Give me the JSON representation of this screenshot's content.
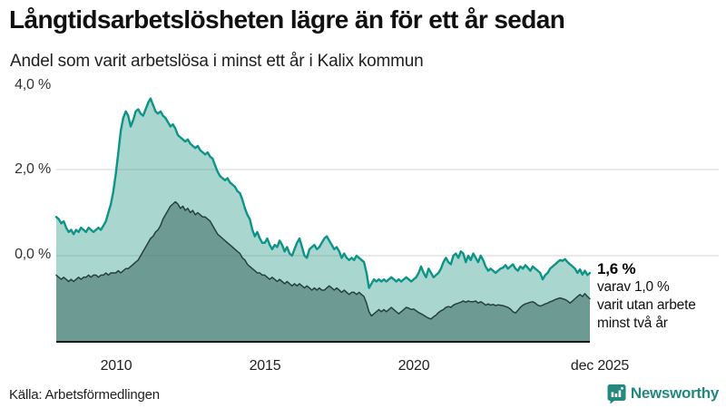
{
  "header": {
    "title": "Långtidsarbetslösheten lägre än för ett år sedan",
    "subtitle": "Andel som varit arbetslösa i minst ett år i Kalix kommun"
  },
  "chart_data": {
    "type": "area",
    "title": "Långtidsarbetslösheten lägre än för ett år sedan",
    "subtitle": "Andel som varit arbetslösa i minst ett år i Kalix kommun",
    "unit": "%",
    "frequency": "monthly",
    "x_start": "2008-01",
    "x_end": "2025-12",
    "xlim": [
      2008.0,
      2026.0
    ],
    "ylim": [
      0,
      5.8
    ],
    "grid": "horizontal",
    "y_grid_values": [
      2,
      4
    ],
    "y_ticks": [
      {
        "value": 0,
        "label": "0,0 %"
      },
      {
        "value": 2,
        "label": "2,0 %"
      },
      {
        "value": 4,
        "label": "4,0 %"
      }
    ],
    "x_ticks": [
      {
        "year": 2010,
        "label": "2010"
      },
      {
        "year": 2015,
        "label": "2015"
      },
      {
        "year": 2020,
        "label": "2020"
      },
      {
        "year": 2025.92,
        "label": "dec 2025"
      }
    ],
    "series": [
      {
        "name": "Arbetslösa minst ett år",
        "line_color": "#0d9488",
        "fill_color": "#a9d6cf",
        "line_width": 2.4,
        "last_value": 1.6,
        "values": [
          2.9,
          2.85,
          2.75,
          2.8,
          2.65,
          2.55,
          2.6,
          2.5,
          2.6,
          2.55,
          2.65,
          2.6,
          2.55,
          2.65,
          2.6,
          2.55,
          2.6,
          2.65,
          2.6,
          2.7,
          2.8,
          3.0,
          3.2,
          3.5,
          3.9,
          4.4,
          4.9,
          5.2,
          5.35,
          5.25,
          5.0,
          5.15,
          5.35,
          5.4,
          5.3,
          5.25,
          5.4,
          5.55,
          5.65,
          5.5,
          5.35,
          5.3,
          5.35,
          5.25,
          5.2,
          5.1,
          5.0,
          5.05,
          4.95,
          4.8,
          4.75,
          4.7,
          4.65,
          4.7,
          4.6,
          4.55,
          4.5,
          4.55,
          4.45,
          4.4,
          4.35,
          4.4,
          4.3,
          4.25,
          4.1,
          3.95,
          3.85,
          3.8,
          3.75,
          3.8,
          3.7,
          3.65,
          3.6,
          3.5,
          3.45,
          3.3,
          3.1,
          2.95,
          2.85,
          2.6,
          2.45,
          2.55,
          2.4,
          2.3,
          2.3,
          2.4,
          2.25,
          2.15,
          2.25,
          2.2,
          2.35,
          2.25,
          2.1,
          2.2,
          2.05,
          2.0,
          2.15,
          2.3,
          2.4,
          2.2,
          2.0,
          1.95,
          2.15,
          2.2,
          2.25,
          2.15,
          2.2,
          2.3,
          2.4,
          2.45,
          2.35,
          2.25,
          2.15,
          2.2,
          2.1,
          1.95,
          2.05,
          1.95,
          1.9,
          1.95,
          1.9,
          2.0,
          1.95,
          1.9,
          1.85,
          1.6,
          1.25,
          1.35,
          1.45,
          1.4,
          1.45,
          1.4,
          1.45,
          1.4,
          1.45,
          1.5,
          1.45,
          1.4,
          1.45,
          1.4,
          1.45,
          1.5,
          1.45,
          1.4,
          1.45,
          1.5,
          1.6,
          1.75,
          1.6,
          1.5,
          1.7,
          1.6,
          1.5,
          1.55,
          1.6,
          1.7,
          1.85,
          1.95,
          1.85,
          1.8,
          2.0,
          2.05,
          1.95,
          2.1,
          2.05,
          1.85,
          2.0,
          1.9,
          2.05,
          1.95,
          1.85,
          2.0,
          1.9,
          1.75,
          1.65,
          1.7,
          1.65,
          1.6,
          1.65,
          1.7,
          1.72,
          1.78,
          1.7,
          1.75,
          1.8,
          1.7,
          1.65,
          1.75,
          1.7,
          1.78,
          1.72,
          1.65,
          1.75,
          1.7,
          1.65,
          1.6,
          1.45,
          1.55,
          1.6,
          1.7,
          1.75,
          1.8,
          1.85,
          1.9,
          1.88,
          1.92,
          1.85,
          1.8,
          1.75,
          1.7,
          1.6,
          1.68,
          1.56,
          1.65,
          1.55,
          1.6
        ]
      },
      {
        "name": "Arbetslösa minst två år",
        "line_color": "#26403c",
        "fill_color": "#6d9b94",
        "line_width": 1.5,
        "last_value": 1.0,
        "values": [
          1.55,
          1.5,
          1.45,
          1.5,
          1.45,
          1.4,
          1.45,
          1.4,
          1.45,
          1.5,
          1.45,
          1.5,
          1.5,
          1.55,
          1.5,
          1.55,
          1.55,
          1.5,
          1.55,
          1.55,
          1.6,
          1.55,
          1.6,
          1.6,
          1.6,
          1.65,
          1.6,
          1.65,
          1.7,
          1.7,
          1.75,
          1.8,
          1.85,
          1.9,
          2.0,
          2.1,
          2.2,
          2.3,
          2.4,
          2.45,
          2.55,
          2.6,
          2.7,
          2.85,
          2.95,
          3.05,
          3.15,
          3.2,
          3.25,
          3.2,
          3.1,
          3.15,
          3.05,
          3.1,
          3.0,
          3.05,
          2.95,
          3.0,
          2.95,
          2.9,
          2.9,
          2.85,
          2.8,
          2.7,
          2.6,
          2.5,
          2.45,
          2.4,
          2.35,
          2.3,
          2.25,
          2.2,
          2.15,
          2.1,
          2.05,
          1.95,
          1.9,
          1.8,
          1.75,
          1.7,
          1.65,
          1.6,
          1.6,
          1.55,
          1.55,
          1.5,
          1.45,
          1.5,
          1.45,
          1.4,
          1.45,
          1.4,
          1.35,
          1.4,
          1.35,
          1.3,
          1.35,
          1.3,
          1.35,
          1.3,
          1.25,
          1.3,
          1.25,
          1.2,
          1.25,
          1.2,
          1.25,
          1.2,
          1.2,
          1.25,
          1.3,
          1.25,
          1.2,
          1.25,
          1.2,
          1.15,
          1.2,
          1.15,
          1.1,
          1.15,
          1.15,
          1.1,
          1.15,
          1.1,
          1.05,
          0.9,
          0.7,
          0.6,
          0.65,
          0.7,
          0.75,
          0.7,
          0.75,
          0.7,
          0.75,
          0.8,
          0.75,
          0.7,
          0.65,
          0.7,
          0.75,
          0.8,
          0.78,
          0.75,
          0.76,
          0.72,
          0.68,
          0.65,
          0.62,
          0.58,
          0.55,
          0.53,
          0.58,
          0.62,
          0.68,
          0.72,
          0.75,
          0.8,
          0.82,
          0.8,
          0.85,
          0.88,
          0.9,
          0.92,
          0.95,
          0.92,
          0.95,
          0.93,
          0.93,
          0.95,
          0.9,
          0.93,
          0.9,
          0.85,
          0.88,
          0.85,
          0.87,
          0.84,
          0.86,
          0.85,
          0.84,
          0.82,
          0.8,
          0.76,
          0.7,
          0.67,
          0.73,
          0.8,
          0.85,
          0.88,
          0.9,
          0.92,
          0.93,
          0.9,
          0.85,
          0.83,
          0.85,
          0.88,
          0.9,
          0.93,
          0.95,
          0.98,
          1.0,
          1.02,
          1.0,
          0.98,
          0.95,
          0.9,
          0.95,
          1.0,
          1.05,
          1.1,
          1.05,
          1.12,
          1.05,
          1.0
        ]
      }
    ]
  },
  "annotation": {
    "value": "1,6 %",
    "lines": [
      "varav 1,0 %",
      "varit utan arbete",
      "minst två år"
    ]
  },
  "footer": {
    "source": "Källa: Arbetsförmedlingen",
    "brand": "Newsworthy"
  },
  "colors": {
    "accent_teal": "#0d9488",
    "fill_light": "#a9d6cf",
    "fill_dark": "#6d9b94",
    "dark_line": "#26403c",
    "gridline": "#d9d9d9",
    "baseline": "#1a1a1a",
    "brand_teal": "#23897f"
  }
}
